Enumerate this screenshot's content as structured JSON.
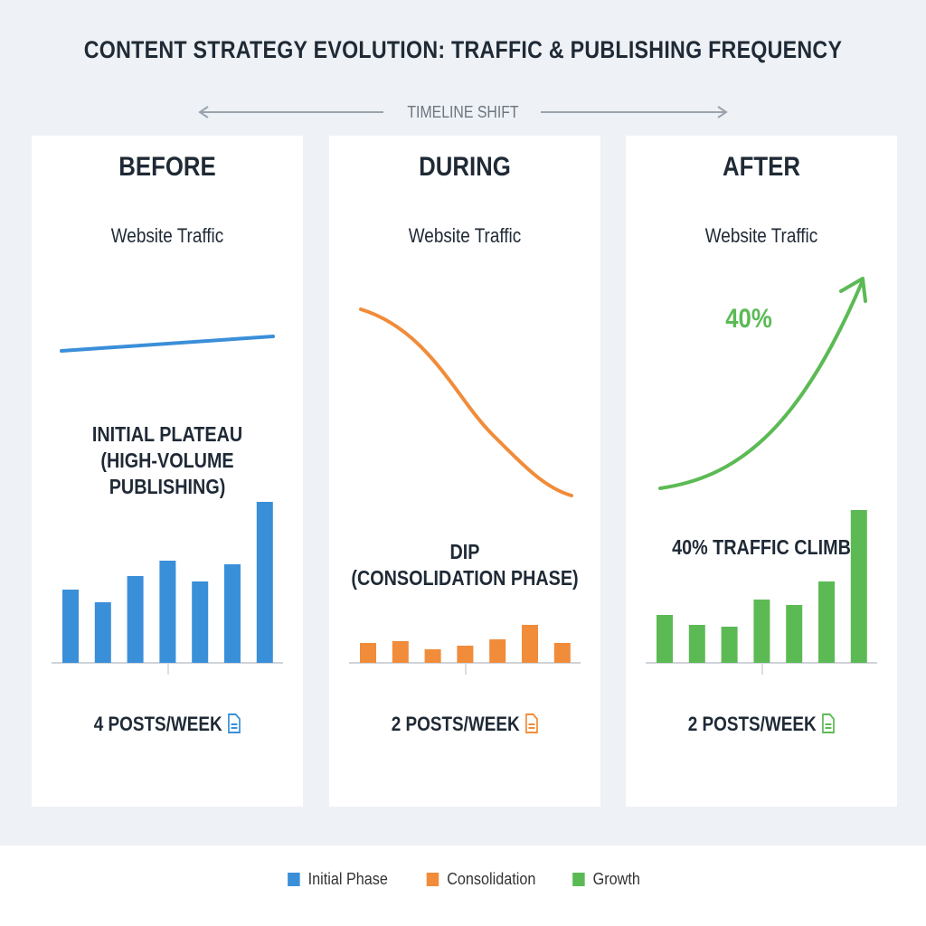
{
  "title": "CONTENT STRATEGY EVOLUTION: TRAFFIC & PUBLISHING FREQUENCY",
  "timeline_label": "TIMELINE SHIFT",
  "chart_data": [
    {
      "type": "bar",
      "phase": "BEFORE",
      "subtitle": "Website Traffic",
      "trend": "flat, slight rise",
      "annotation": "INITIAL PLATEAU (HIGH-VOLUME PUBLISHING)",
      "annotation_lines": [
        "INITIAL PLATEAU",
        "(HIGH-VOLUME",
        "PUBLISHING)"
      ],
      "values": [
        81,
        67,
        96,
        113,
        90,
        109,
        178
      ],
      "posts": "4 POSTS/WEEK",
      "color": "#3a8fd9"
    },
    {
      "type": "bar",
      "phase": "DURING",
      "subtitle": "Website Traffic",
      "trend": "declining",
      "annotation": "DIP (CONSOLIDATION PHASE)",
      "annotation_lines": [
        "DIP",
        "(CONSOLIDATION PHASE)"
      ],
      "values": [
        22,
        24,
        15,
        19,
        26,
        42,
        22
      ],
      "posts": "2 POSTS/WEEK",
      "color": "#f08c3a"
    },
    {
      "type": "bar",
      "phase": "AFTER",
      "subtitle": "Website Traffic",
      "trend": "rising",
      "trend_label": "40%",
      "annotation": "40% TRAFFIC CLIMB",
      "annotation_lines": [
        "40% TRAFFIC CLIMB"
      ],
      "values": [
        53,
        42,
        40,
        70,
        64,
        90,
        169
      ],
      "posts": "2 POSTS/WEEK",
      "color": "#5cba55"
    }
  ],
  "legend": [
    {
      "label": "Initial Phase",
      "color": "#3a8fd9"
    },
    {
      "label": "Consolidation",
      "color": "#f08c3a"
    },
    {
      "label": "Growth",
      "color": "#5cba55"
    }
  ]
}
